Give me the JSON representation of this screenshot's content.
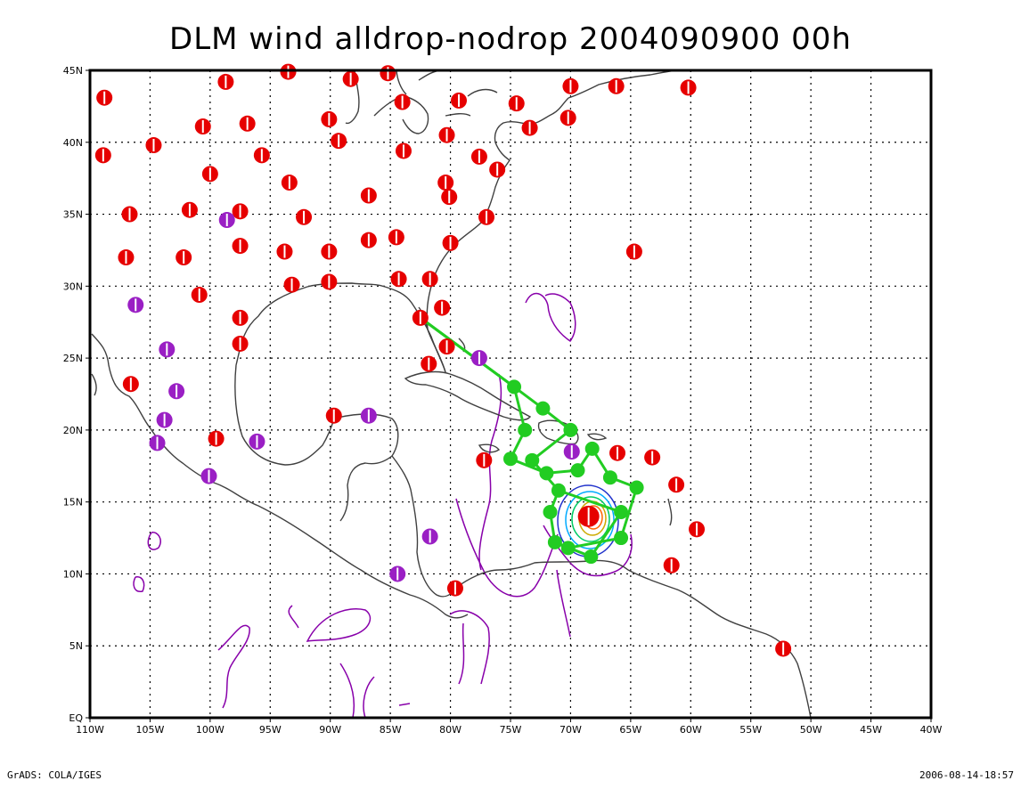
{
  "title": "DLM wind alldrop-nodrop 2004090900 00h",
  "axes": {
    "lon_labels": [
      "110W",
      "105W",
      "100W",
      "95W",
      "90W",
      "85W",
      "80W",
      "75W",
      "70W",
      "65W",
      "60W",
      "55W",
      "50W",
      "45W",
      "40W"
    ],
    "lat_labels": [
      "EQ",
      "5N",
      "10N",
      "15N",
      "20N",
      "25N",
      "30N",
      "35N",
      "40N",
      "45N"
    ],
    "lon_range": [
      -110,
      -40
    ],
    "lat_range": [
      0,
      45
    ],
    "grid": "dotted"
  },
  "footer": {
    "left": "GrADS: COLA/IGES",
    "right": "2006-08-14-18:57"
  },
  "colors": {
    "drop_red": "#e60000",
    "drop_purple": "#9a1fc4",
    "track": "#22cc22",
    "coast": "#404040",
    "contour_purple": "#8800aa"
  },
  "stations_red": [
    [
      -108.8,
      43.1
    ],
    [
      -98.7,
      44.2
    ],
    [
      -93.5,
      44.9
    ],
    [
      -88.3,
      44.4
    ],
    [
      -85.2,
      44.8
    ],
    [
      -84,
      42.8
    ],
    [
      -79.3,
      42.9
    ],
    [
      -74.5,
      42.7
    ],
    [
      -70,
      43.9
    ],
    [
      -66.2,
      43.9
    ],
    [
      -60.2,
      43.8
    ],
    [
      -108.9,
      39.1
    ],
    [
      -104.7,
      39.8
    ],
    [
      -100.6,
      41.1
    ],
    [
      -96.9,
      41.3
    ],
    [
      -95.7,
      39.1
    ],
    [
      -90.1,
      41.6
    ],
    [
      -89.3,
      40.1
    ],
    [
      -83.9,
      39.4
    ],
    [
      -80.3,
      40.5
    ],
    [
      -77.6,
      39
    ],
    [
      -76.1,
      38.1
    ],
    [
      -73.4,
      41
    ],
    [
      -70.2,
      41.7
    ],
    [
      -100,
      37.8
    ],
    [
      -93.4,
      37.2
    ],
    [
      -86.8,
      36.3
    ],
    [
      -80.4,
      37.2
    ],
    [
      -80.1,
      36.2
    ],
    [
      -106.7,
      35
    ],
    [
      -101.7,
      35.3
    ],
    [
      -97.5,
      35.2
    ],
    [
      -92.2,
      34.8
    ],
    [
      -77,
      34.8
    ],
    [
      -107,
      32
    ],
    [
      -102.2,
      32
    ],
    [
      -97.5,
      32.8
    ],
    [
      -93.8,
      32.4
    ],
    [
      -90.1,
      32.4
    ],
    [
      -86.8,
      33.2
    ],
    [
      -84.5,
      33.4
    ],
    [
      -80,
      33
    ],
    [
      -64.7,
      32.4
    ],
    [
      -100.9,
      29.4
    ],
    [
      -93.2,
      30.1
    ],
    [
      -90.1,
      30.3
    ],
    [
      -84.3,
      30.5
    ],
    [
      -81.7,
      30.5
    ],
    [
      -80.7,
      28.5
    ],
    [
      -97.5,
      27.8
    ],
    [
      -97.5,
      26
    ],
    [
      -82.5,
      27.8
    ],
    [
      -80.3,
      25.8
    ],
    [
      -81.8,
      24.6
    ],
    [
      -106.6,
      23.2
    ],
    [
      -89.7,
      21
    ],
    [
      -99.5,
      19.4
    ],
    [
      -77.2,
      17.9
    ],
    [
      -66.1,
      18.4
    ],
    [
      -63.2,
      18.1
    ],
    [
      -61.2,
      16.2
    ],
    [
      -59.5,
      13.1
    ],
    [
      -61.6,
      10.6
    ],
    [
      -79.6,
      9
    ],
    [
      -52.3,
      4.8
    ]
  ],
  "stations_purple": [
    [
      -98.6,
      34.6
    ],
    [
      -106.2,
      28.7
    ],
    [
      -103.6,
      25.6
    ],
    [
      -102.8,
      22.7
    ],
    [
      -103.8,
      20.7
    ],
    [
      -104.4,
      19.1
    ],
    [
      -96.1,
      19.2
    ],
    [
      -100.1,
      16.8
    ],
    [
      -86.8,
      21
    ],
    [
      -77.6,
      25
    ],
    [
      -69.9,
      18.5
    ],
    [
      -81.7,
      12.6
    ],
    [
      -84.4,
      10
    ]
  ],
  "hurricane_center": [
    -68.5,
    14
  ],
  "track_nodes": [
    [
      -82.5,
      27.8
    ],
    [
      -74.7,
      23
    ],
    [
      -72.3,
      21.5
    ],
    [
      -70,
      20
    ],
    [
      -73.8,
      20
    ],
    [
      -75,
      18
    ],
    [
      -73.2,
      17.9
    ],
    [
      -72,
      17
    ],
    [
      -71,
      15.8
    ],
    [
      -69.4,
      17.2
    ],
    [
      -68.2,
      18.7
    ],
    [
      -66.7,
      16.7
    ],
    [
      -64.5,
      16
    ],
    [
      -65.8,
      14.3
    ],
    [
      -65.8,
      12.5
    ],
    [
      -68.3,
      11.2
    ],
    [
      -70.2,
      11.8
    ],
    [
      -71.3,
      12.2
    ],
    [
      -71.7,
      14.3
    ]
  ]
}
